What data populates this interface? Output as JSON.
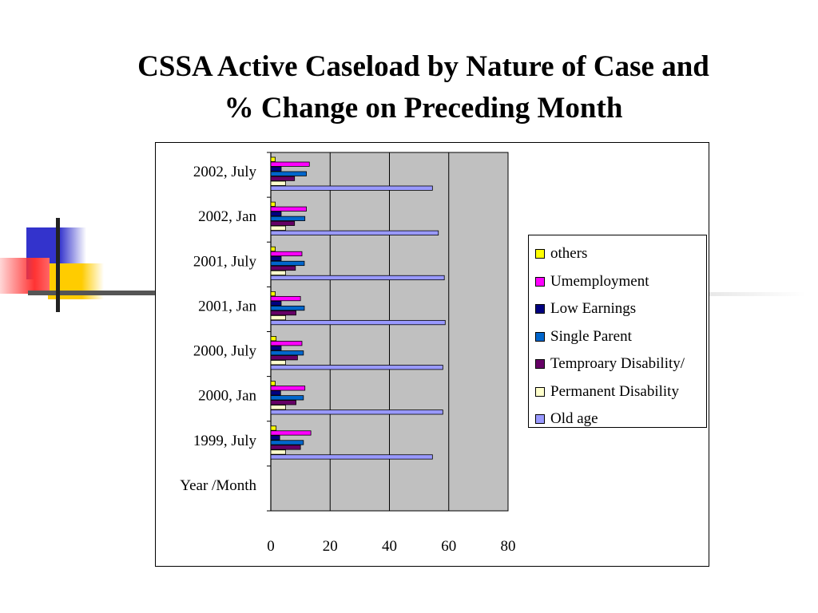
{
  "slide": {
    "title_line1": "CSSA Active Caseload by Nature of Case and",
    "title_line2": "% Change on Preceding Month"
  },
  "chart_data": {
    "type": "bar",
    "orientation": "horizontal",
    "categories": [
      "2002, July",
      "2002, Jan",
      "2001, July",
      "2001, Jan",
      "2000, July",
      "2000, Jan",
      "1999, July",
      "Year /Month"
    ],
    "series": [
      {
        "name": "others",
        "color": "#FFFF00",
        "values": [
          1.5,
          1.5,
          1.5,
          1.5,
          1.8,
          1.5,
          1.8,
          null
        ]
      },
      {
        "name": "Umemployment",
        "color": "#FF00FF",
        "values": [
          13.0,
          12.0,
          10.5,
          10.0,
          10.5,
          11.5,
          13.5,
          null
        ]
      },
      {
        "name": "Low Earnings",
        "color": "#000080",
        "values": [
          3.5,
          3.5,
          3.5,
          3.5,
          3.5,
          3.3,
          3.0,
          null
        ]
      },
      {
        "name": "Single Parent",
        "color": "#0066CC",
        "values": [
          12.0,
          11.5,
          11.3,
          11.3,
          11.0,
          11.0,
          11.0,
          null
        ]
      },
      {
        "name": "Temproary Disability/",
        "color": "#660066",
        "values": [
          8.0,
          8.0,
          8.3,
          8.5,
          9.0,
          8.5,
          10.0,
          null
        ]
      },
      {
        "name": "Permanent Disability",
        "color": "#FFFFCC",
        "values": [
          5.0,
          5.0,
          5.0,
          5.0,
          5.0,
          5.0,
          5.0,
          null
        ]
      },
      {
        "name": "Old age",
        "color": "#9999FF",
        "values": [
          54.5,
          56.5,
          58.5,
          58.8,
          58.0,
          58.0,
          54.5,
          null
        ]
      }
    ],
    "xlim": [
      0,
      80
    ],
    "xticks": [
      "0",
      "20",
      "40",
      "60",
      "80"
    ],
    "grid": "vertical",
    "plot_background": "#C0C0C0",
    "legend_position": "right"
  }
}
